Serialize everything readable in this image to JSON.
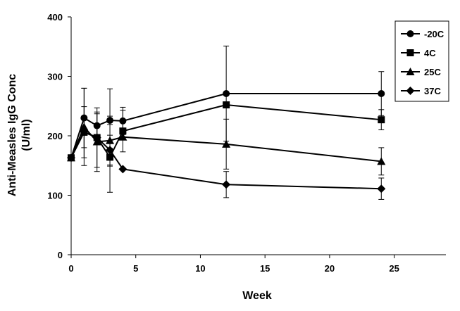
{
  "chart_data": {
    "type": "line",
    "title": "",
    "xlabel": "Week",
    "ylabel_lines": [
      "Anti-Measles IgG Conc",
      "(U/ml)"
    ],
    "xlim": [
      0,
      29
    ],
    "ylim": [
      0,
      400
    ],
    "xticks": [
      0,
      5,
      10,
      15,
      20,
      25
    ],
    "yticks": [
      0,
      100,
      200,
      300,
      400
    ],
    "grid": false,
    "legend_position": "top-right",
    "series": [
      {
        "name": "-20C",
        "marker": "circle",
        "x": [
          0,
          1,
          2,
          3,
          4,
          12,
          24
        ],
        "y": [
          163,
          230,
          217,
          226,
          225,
          271,
          271
        ],
        "err": [
          0,
          50,
          20,
          7,
          23,
          80,
          37
        ]
      },
      {
        "name": "4C",
        "marker": "square",
        "x": [
          0,
          1,
          2,
          3,
          4,
          12,
          24
        ],
        "y": [
          163,
          206,
          197,
          164,
          208,
          252,
          227
        ],
        "err": [
          0,
          43,
          50,
          15,
          35,
          0,
          17
        ]
      },
      {
        "name": "25C",
        "marker": "triangle",
        "x": [
          0,
          1,
          2,
          3,
          4,
          12,
          24
        ],
        "y": [
          163,
          215,
          190,
          192,
          198,
          186,
          157
        ],
        "err": [
          0,
          65,
          50,
          87,
          0,
          42,
          23
        ]
      },
      {
        "name": "37C",
        "marker": "diamond",
        "x": [
          0,
          1,
          2,
          3,
          4,
          12,
          24
        ],
        "y": [
          163,
          207,
          197,
          176,
          144,
          118,
          111
        ],
        "err": [
          0,
          0,
          0,
          25,
          0,
          22,
          18
        ]
      }
    ]
  }
}
